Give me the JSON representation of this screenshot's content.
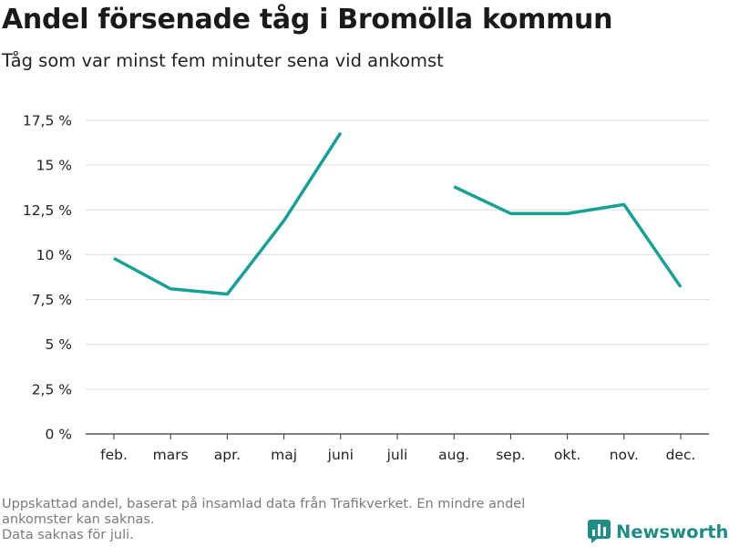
{
  "title": "Andel försenade tåg i Bromölla kommun",
  "subtitle": "Tåg som var minst fem minuter sena vid ankomst",
  "chart_data": {
    "type": "line",
    "categories": [
      "feb.",
      "mars",
      "apr.",
      "maj",
      "juni",
      "juli",
      "aug.",
      "sep.",
      "okt.",
      "nov.",
      "dec."
    ],
    "series": [
      {
        "values": [
          9.8,
          8.1,
          7.8,
          11.9,
          16.8,
          null,
          13.8,
          12.3,
          12.3,
          12.8,
          8.2
        ]
      }
    ],
    "yticks": [
      0,
      2.5,
      5,
      7.5,
      10,
      12.5,
      15,
      17.5
    ],
    "ytick_labels": [
      "0 %",
      "2,5 %",
      "5 %",
      "7,5 %",
      "10 %",
      "12,5 %",
      "15 %",
      "17,5 %"
    ],
    "ylim": [
      0,
      17.5
    ],
    "grid": true,
    "line_color": "#18a096"
  },
  "footnote": [
    "Uppskattad andel, baserat på insamlad data från Trafikverket. En mindre andel",
    "ankomster kan saknas.",
    "Data saknas för juli."
  ],
  "brand": {
    "name": "Newsworthy",
    "icon": "newsworthy-logo-icon",
    "color": "#1f8c85"
  }
}
